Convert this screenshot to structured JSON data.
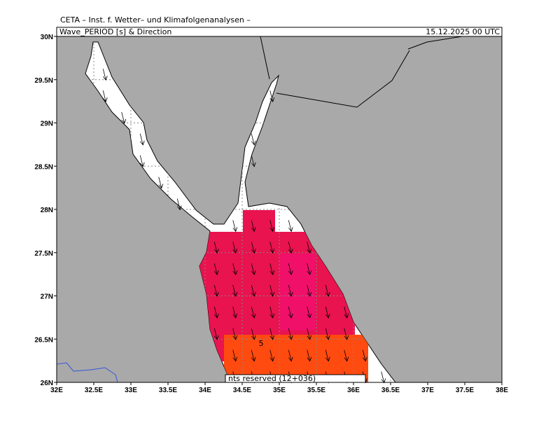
{
  "header": {
    "institute": "CETA – Inst. f. Wetter– und Klimafolgenanalysen –",
    "field": "Wave_PERIOD [s] & Direction",
    "date": "15.12.2025 00 UTC"
  },
  "map": {
    "xlim": [
      32,
      38
    ],
    "ylim": [
      26,
      30
    ],
    "xticks": [
      {
        "value": 32,
        "label": "32E"
      },
      {
        "value": 32.5,
        "label": "32.5E"
      },
      {
        "value": 33,
        "label": "33E"
      },
      {
        "value": 33.5,
        "label": "33.5E"
      },
      {
        "value": 34,
        "label": "34E"
      },
      {
        "value": 34.5,
        "label": "34.5E"
      },
      {
        "value": 35,
        "label": "35E"
      },
      {
        "value": 35.5,
        "label": "35.5E"
      },
      {
        "value": 36,
        "label": "36E"
      },
      {
        "value": 36.5,
        "label": "36.5E"
      },
      {
        "value": 37,
        "label": "37E"
      },
      {
        "value": 37.5,
        "label": "37.5E"
      },
      {
        "value": 38,
        "label": "38E"
      }
    ],
    "yticks": [
      {
        "value": 26,
        "label": "26N"
      },
      {
        "value": 26.5,
        "label": "26.5N"
      },
      {
        "value": 27,
        "label": "27N"
      },
      {
        "value": 27.5,
        "label": "27.5N"
      },
      {
        "value": 28,
        "label": "28N"
      },
      {
        "value": 28.5,
        "label": "28.5N"
      },
      {
        "value": 29,
        "label": "29N"
      },
      {
        "value": 29.5,
        "label": "29.5N"
      },
      {
        "value": 30,
        "label": "30N"
      }
    ],
    "contour_label": "5",
    "footer": "nts reserved (12+036)"
  }
}
